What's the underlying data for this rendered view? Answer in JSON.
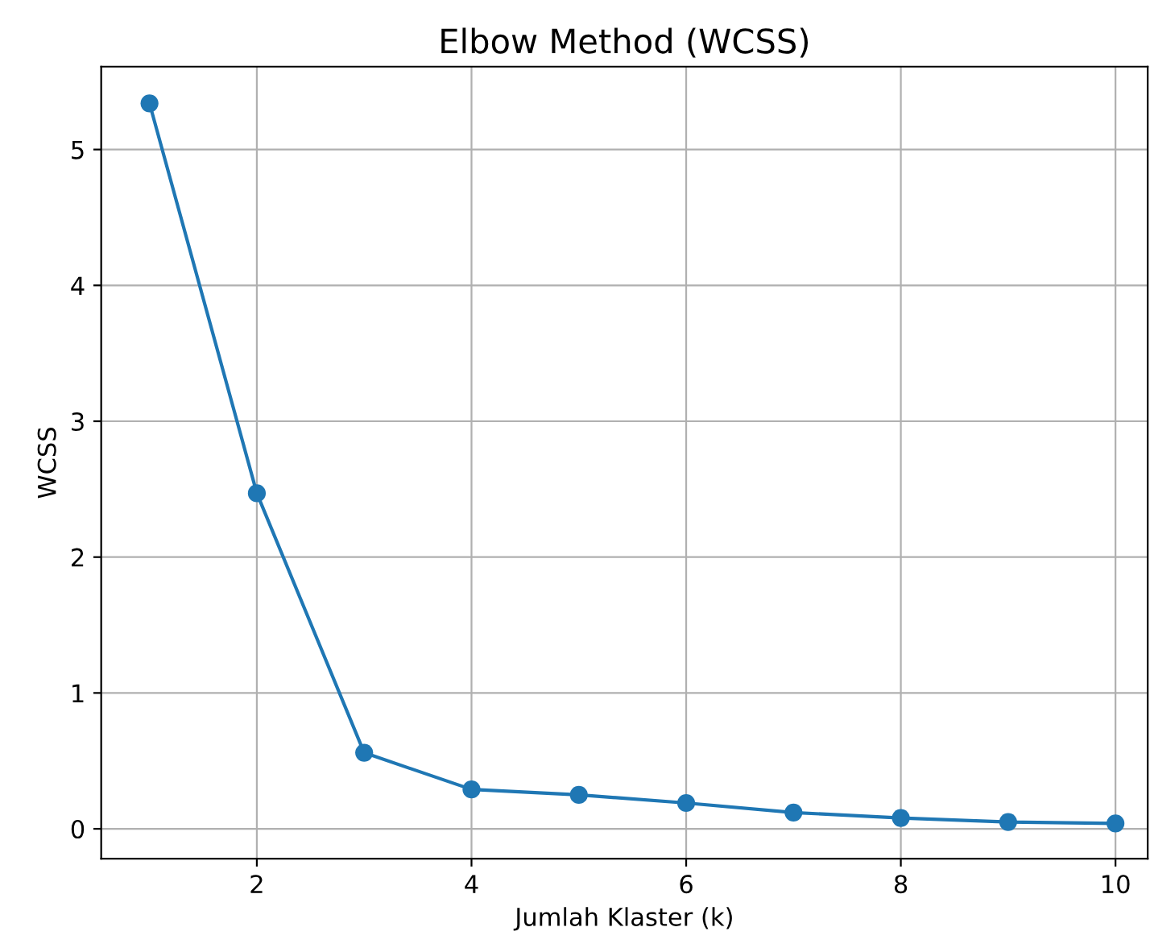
{
  "chart_data": {
    "type": "line",
    "title": "Elbow Method (WCSS)",
    "xlabel": "Jumlah Klaster (k)",
    "ylabel": "WCSS",
    "x": [
      1,
      2,
      3,
      4,
      5,
      6,
      7,
      8,
      9,
      10
    ],
    "series": [
      {
        "color": "#1f77b4",
        "values": [
          5.34,
          2.47,
          0.56,
          0.29,
          0.25,
          0.19,
          0.12,
          0.08,
          0.05,
          0.04
        ]
      }
    ],
    "xlim": [
      0.55,
      10.3
    ],
    "xticks": [
      2,
      4,
      6,
      8,
      10
    ],
    "ylim": [
      -0.22,
      5.61
    ],
    "yticks": [
      0,
      1,
      2,
      3,
      4,
      5
    ],
    "grid": true,
    "marker": "circle",
    "line_style": "solid"
  }
}
